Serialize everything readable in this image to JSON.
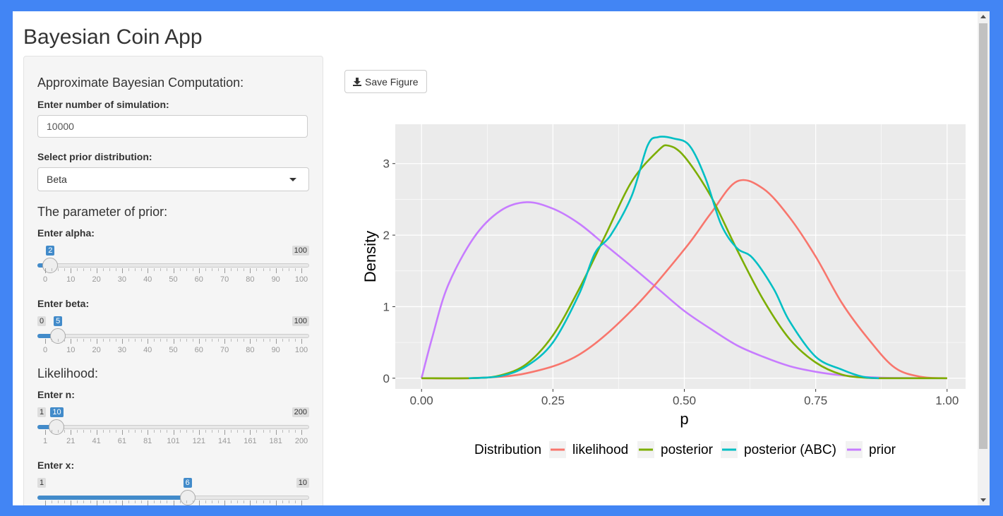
{
  "app_title": "Bayesian Coin App",
  "sidebar": {
    "abc_title": "Approximate Bayesian Computation:",
    "sim_label": "Enter number of simulation:",
    "sim_value": "10000",
    "prior_select_label": "Select prior distribution:",
    "prior_select_value": "Beta",
    "prior_param_title": "The parameter of prior:",
    "likelihood_title": "Likelihood:",
    "sliders": {
      "alpha": {
        "label": "Enter alpha:",
        "min": "0",
        "max": "100",
        "value": "2",
        "min_num": 0,
        "max_num": 100,
        "value_num": 2,
        "ticks": [
          "0",
          "10",
          "20",
          "30",
          "40",
          "50",
          "60",
          "70",
          "80",
          "90",
          "100"
        ]
      },
      "beta": {
        "label": "Enter beta:",
        "min": "0",
        "max": "100",
        "value": "5",
        "min_num": 0,
        "max_num": 100,
        "value_num": 5,
        "ticks": [
          "0",
          "10",
          "20",
          "30",
          "40",
          "50",
          "60",
          "70",
          "80",
          "90",
          "100"
        ]
      },
      "n": {
        "label": "Enter n:",
        "min": "1",
        "max": "200",
        "value": "10",
        "min_num": 1,
        "max_num": 200,
        "value_num": 10,
        "ticks": [
          "1",
          "21",
          "41",
          "61",
          "81",
          "101",
          "121",
          "141",
          "161",
          "181",
          "200"
        ]
      },
      "x": {
        "label": "Enter x:",
        "min": "1",
        "max": "10",
        "value": "6",
        "min_num": 1,
        "max_num": 10,
        "value_num": 6,
        "ticks": []
      }
    }
  },
  "save_button": {
    "label": "Save Figure",
    "icon": "download-icon"
  },
  "chart_data": {
    "type": "line",
    "xlabel": "p",
    "ylabel": "Density",
    "xlim": [
      -0.05,
      1.05
    ],
    "ylim": [
      -0.15,
      3.55
    ],
    "x_ticks": [
      0,
      0.25,
      0.5,
      0.75,
      1.0
    ],
    "x_tick_labels": [
      "0.00",
      "0.25",
      "0.50",
      "0.75",
      "1.00"
    ],
    "y_ticks": [
      0,
      1,
      2,
      3
    ],
    "y_tick_labels": [
      "0",
      "1",
      "2",
      "3"
    ],
    "legend_title": "Distribution",
    "legend_position": "bottom",
    "series": [
      {
        "name": "likelihood",
        "color": "#f8766d",
        "points": [
          [
            0,
            0
          ],
          [
            0.1,
            0.002
          ],
          [
            0.2,
            0.07
          ],
          [
            0.3,
            0.33
          ],
          [
            0.4,
            0.95
          ],
          [
            0.5,
            1.8
          ],
          [
            0.55,
            2.3
          ],
          [
            0.6,
            2.75
          ],
          [
            0.65,
            2.65
          ],
          [
            0.7,
            2.25
          ],
          [
            0.75,
            1.7
          ],
          [
            0.8,
            1.05
          ],
          [
            0.85,
            0.55
          ],
          [
            0.9,
            0.15
          ],
          [
            0.95,
            0.02
          ],
          [
            1.0,
            0
          ]
        ]
      },
      {
        "name": "posterior",
        "color": "#7cae00",
        "points": [
          [
            0,
            0
          ],
          [
            0.1,
            0.002
          ],
          [
            0.15,
            0.04
          ],
          [
            0.2,
            0.2
          ],
          [
            0.25,
            0.6
          ],
          [
            0.3,
            1.25
          ],
          [
            0.35,
            2.0
          ],
          [
            0.4,
            2.75
          ],
          [
            0.45,
            3.18
          ],
          [
            0.47,
            3.25
          ],
          [
            0.5,
            3.1
          ],
          [
            0.55,
            2.55
          ],
          [
            0.6,
            1.8
          ],
          [
            0.65,
            1.1
          ],
          [
            0.7,
            0.55
          ],
          [
            0.75,
            0.22
          ],
          [
            0.8,
            0.05
          ],
          [
            0.85,
            0.005
          ],
          [
            0.9,
            0
          ],
          [
            1.0,
            0
          ]
        ]
      },
      {
        "name": "posterior (ABC)",
        "color": "#00bfc4",
        "points": [
          [
            0.09,
            0
          ],
          [
            0.15,
            0.03
          ],
          [
            0.2,
            0.17
          ],
          [
            0.25,
            0.5
          ],
          [
            0.3,
            1.18
          ],
          [
            0.33,
            1.75
          ],
          [
            0.36,
            2.0
          ],
          [
            0.4,
            2.55
          ],
          [
            0.43,
            3.25
          ],
          [
            0.45,
            3.37
          ],
          [
            0.48,
            3.35
          ],
          [
            0.51,
            3.25
          ],
          [
            0.54,
            2.8
          ],
          [
            0.57,
            2.15
          ],
          [
            0.6,
            1.82
          ],
          [
            0.63,
            1.68
          ],
          [
            0.67,
            1.25
          ],
          [
            0.7,
            0.8
          ],
          [
            0.75,
            0.3
          ],
          [
            0.8,
            0.12
          ],
          [
            0.84,
            0.02
          ],
          [
            0.87,
            0
          ]
        ]
      },
      {
        "name": "prior",
        "color": "#c77cff",
        "points": [
          [
            0,
            0
          ],
          [
            0.02,
            0.56
          ],
          [
            0.05,
            1.29
          ],
          [
            0.1,
            1.97
          ],
          [
            0.15,
            2.34
          ],
          [
            0.2,
            2.46
          ],
          [
            0.25,
            2.37
          ],
          [
            0.3,
            2.16
          ],
          [
            0.35,
            1.86
          ],
          [
            0.4,
            1.56
          ],
          [
            0.45,
            1.25
          ],
          [
            0.5,
            0.94
          ],
          [
            0.55,
            0.69
          ],
          [
            0.6,
            0.46
          ],
          [
            0.65,
            0.3
          ],
          [
            0.7,
            0.17
          ],
          [
            0.75,
            0.09
          ],
          [
            0.8,
            0.04
          ],
          [
            0.85,
            0.015
          ],
          [
            0.9,
            0.004
          ],
          [
            1.0,
            0
          ]
        ]
      }
    ]
  }
}
